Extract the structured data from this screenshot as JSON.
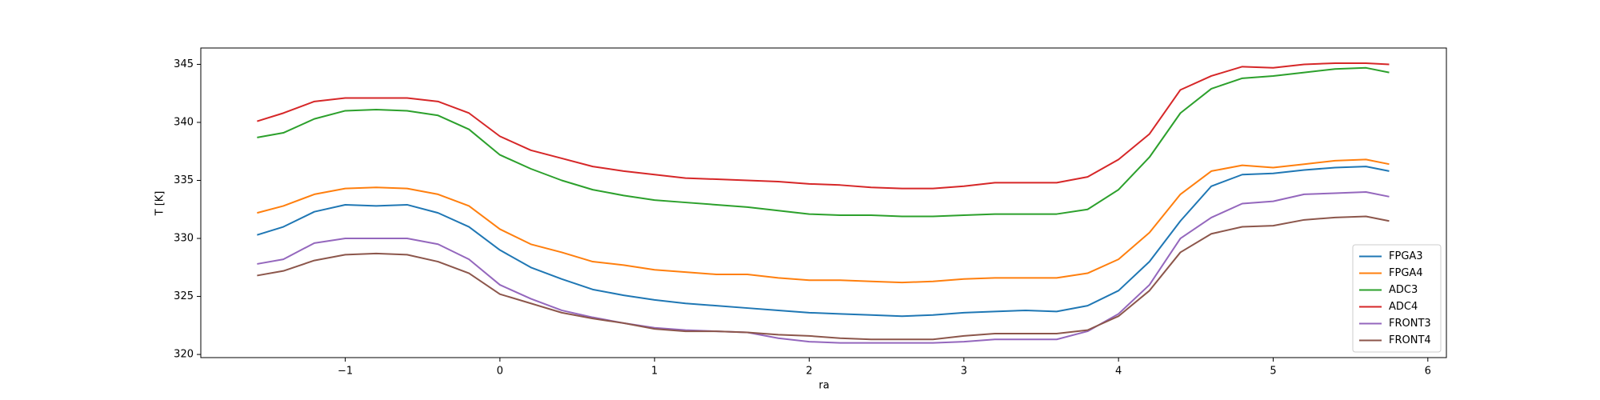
{
  "chart_data": {
    "type": "line",
    "xlabel": "ra",
    "ylabel": "T [K]",
    "x": [
      -1.57,
      -1.4,
      -1.2,
      -1.0,
      -0.8,
      -0.6,
      -0.4,
      -0.2,
      0,
      0.2,
      0.4,
      0.6,
      0.8,
      1.0,
      1.2,
      1.4,
      1.6,
      1.8,
      2.0,
      2.2,
      2.4,
      2.6,
      2.8,
      3.0,
      3.2,
      3.4,
      3.6,
      3.8,
      4.0,
      4.2,
      4.4,
      4.6,
      4.8,
      5.0,
      5.2,
      5.4,
      5.6,
      5.75
    ],
    "series": [
      {
        "name": "FPGA3",
        "color": "#1f77b4",
        "values": [
          330.3,
          331.0,
          332.3,
          332.9,
          332.8,
          332.9,
          332.2,
          331.0,
          329.0,
          327.5,
          326.5,
          325.6,
          325.1,
          324.7,
          324.4,
          324.2,
          324.0,
          323.8,
          323.6,
          323.5,
          323.4,
          323.3,
          323.4,
          323.6,
          323.7,
          323.8,
          323.7,
          324.2,
          325.5,
          328.0,
          331.5,
          334.5,
          335.5,
          335.6,
          335.9,
          336.1,
          336.2,
          335.8
        ]
      },
      {
        "name": "FPGA4",
        "color": "#ff7f0e",
        "values": [
          332.2,
          332.8,
          333.8,
          334.3,
          334.4,
          334.3,
          333.8,
          332.8,
          330.8,
          329.5,
          328.8,
          328.0,
          327.7,
          327.3,
          327.1,
          326.9,
          326.9,
          326.6,
          326.4,
          326.4,
          326.3,
          326.2,
          326.3,
          326.5,
          326.6,
          326.6,
          326.6,
          327.0,
          328.2,
          330.5,
          333.8,
          335.8,
          336.3,
          336.1,
          336.4,
          336.7,
          336.8,
          336.4
        ]
      },
      {
        "name": "ADC3",
        "color": "#2ca02c",
        "values": [
          338.7,
          339.1,
          340.3,
          341.0,
          341.1,
          341.0,
          340.6,
          339.4,
          337.2,
          336.0,
          335.0,
          334.2,
          333.7,
          333.3,
          333.1,
          332.9,
          332.7,
          332.4,
          332.1,
          332.0,
          332.0,
          331.9,
          331.9,
          332.0,
          332.1,
          332.1,
          332.1,
          332.5,
          334.2,
          337.0,
          340.8,
          342.9,
          343.8,
          344.0,
          344.3,
          344.6,
          344.7,
          344.3
        ]
      },
      {
        "name": "ADC4",
        "color": "#d62728",
        "values": [
          340.1,
          340.8,
          341.8,
          342.1,
          342.1,
          342.1,
          341.8,
          340.8,
          338.8,
          337.6,
          336.9,
          336.2,
          335.8,
          335.5,
          335.2,
          335.1,
          335.0,
          334.9,
          334.7,
          334.6,
          334.4,
          334.3,
          334.3,
          334.5,
          334.8,
          334.8,
          334.8,
          335.3,
          336.8,
          339.0,
          342.8,
          344.0,
          344.8,
          344.7,
          345.0,
          345.1,
          345.1,
          345.0
        ]
      },
      {
        "name": "FRONT3",
        "color": "#9467bd",
        "values": [
          327.8,
          328.2,
          329.6,
          330.0,
          330.0,
          330.0,
          329.5,
          328.2,
          326.0,
          324.8,
          323.8,
          323.2,
          322.7,
          322.3,
          322.1,
          322.0,
          321.9,
          321.4,
          321.1,
          321.0,
          321.0,
          321.0,
          321.0,
          321.1,
          321.3,
          321.3,
          321.3,
          322.0,
          323.5,
          326.0,
          330.0,
          331.8,
          333.0,
          333.2,
          333.8,
          333.9,
          334.0,
          333.6
        ]
      },
      {
        "name": "FRONT4",
        "color": "#8c564b",
        "values": [
          326.8,
          327.2,
          328.1,
          328.6,
          328.7,
          328.6,
          328.0,
          327.0,
          325.2,
          324.4,
          323.6,
          323.1,
          322.7,
          322.2,
          322.0,
          322.0,
          321.9,
          321.7,
          321.6,
          321.4,
          321.3,
          321.3,
          321.3,
          321.6,
          321.8,
          321.8,
          321.8,
          322.1,
          323.3,
          325.5,
          328.8,
          330.4,
          331.0,
          331.1,
          331.6,
          331.8,
          331.9,
          331.5
        ]
      }
    ],
    "xlim": [
      -1.934,
      6.12
    ],
    "ylim": [
      319.73,
      346.41
    ],
    "xticks": [
      {
        "value": -1,
        "label": "−1"
      },
      0,
      1,
      2,
      3,
      4,
      5,
      6
    ],
    "yticks": [
      320,
      325,
      330,
      335,
      340,
      345
    ],
    "grid": false,
    "legend": "lower right"
  }
}
